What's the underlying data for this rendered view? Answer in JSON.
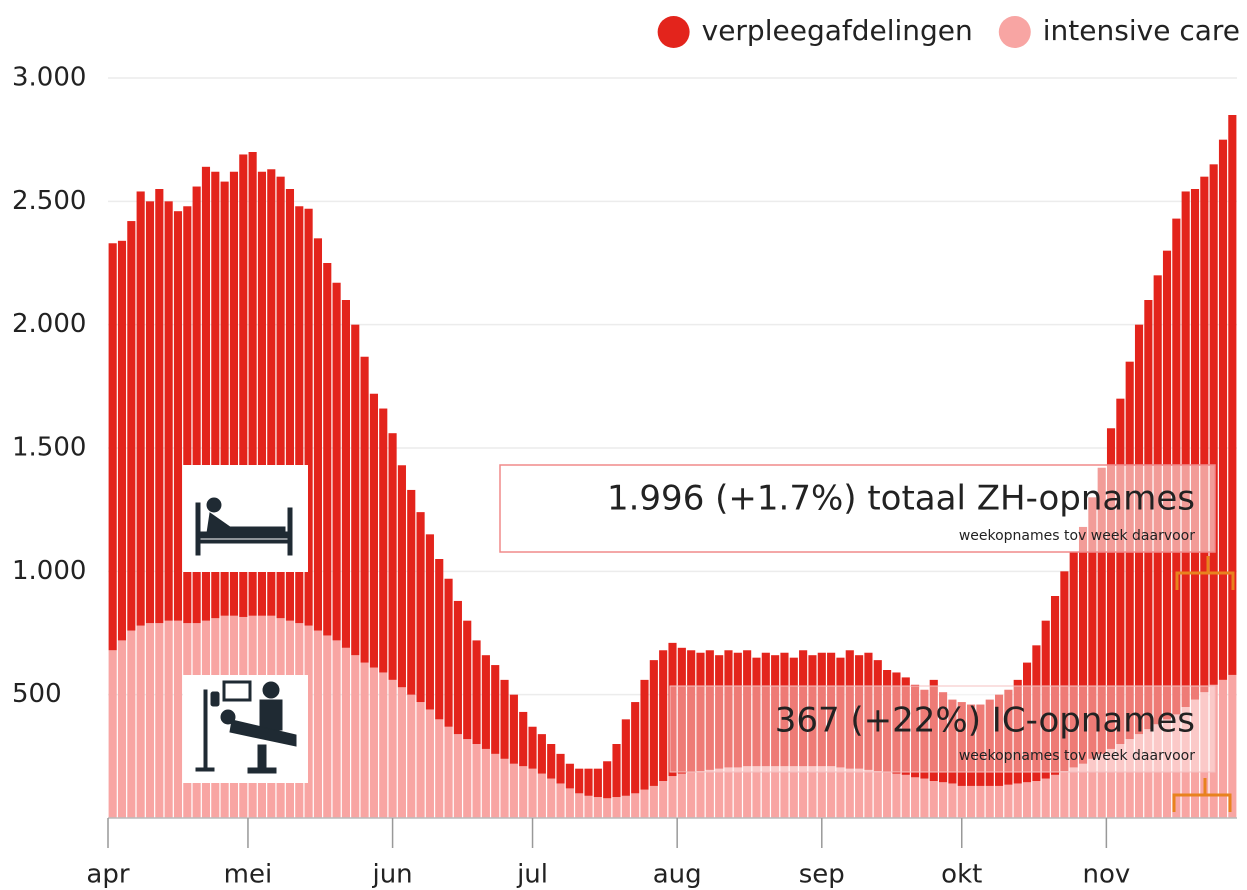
{
  "chart_data": {
    "type": "stacked_bar",
    "x": [
      0,
      2,
      4,
      6,
      8,
      10,
      12,
      14,
      16,
      18,
      20,
      22,
      24,
      26,
      28,
      30,
      32,
      34,
      36,
      38,
      40,
      42,
      44,
      46,
      48,
      50,
      52,
      54,
      56,
      58,
      60,
      62,
      64,
      66,
      68,
      70,
      72,
      74,
      76,
      78,
      80,
      82,
      84,
      86,
      88,
      90,
      92,
      94,
      96,
      98,
      100,
      102,
      104,
      106,
      108,
      110,
      112,
      114,
      116,
      118,
      120,
      122,
      124,
      126,
      128,
      130,
      132,
      134,
      136,
      138,
      140,
      142,
      144,
      146,
      148,
      150,
      152,
      154,
      156,
      158,
      160,
      162,
      164,
      166,
      168,
      170,
      172,
      174,
      176,
      178,
      180,
      182,
      184,
      186,
      188,
      190,
      192,
      194,
      196,
      198,
      200,
      202,
      204,
      206,
      208,
      210,
      212,
      214,
      216,
      218,
      220,
      222,
      224,
      226,
      228,
      230,
      232,
      234,
      236,
      238,
      240
    ],
    "xlim": [
      0,
      242
    ],
    "xticks": [
      {
        "value": 0,
        "label": "apr"
      },
      {
        "value": 30,
        "label": "mei"
      },
      {
        "value": 61,
        "label": "jun"
      },
      {
        "value": 91,
        "label": "jul"
      },
      {
        "value": 122,
        "label": "aug"
      },
      {
        "value": 153,
        "label": "sep"
      },
      {
        "value": 183,
        "label": "okt"
      },
      {
        "value": 214,
        "label": "nov"
      }
    ],
    "ylim": [
      0,
      3000
    ],
    "yticks": [
      500,
      {
        "value": 1000,
        "label": "1.000"
      },
      {
        "value": 1500,
        "label": "1.500"
      },
      {
        "value": 2000,
        "label": "2.000"
      },
      {
        "value": 2500,
        "label": "2.500"
      },
      {
        "value": 3000,
        "label": "3.000"
      }
    ],
    "grid": true,
    "legend": "top-right",
    "series": [
      {
        "name": "verpleegafdelingen",
        "color": "#e3241c",
        "values": [
          1650,
          1620,
          1660,
          1760,
          1710,
          1760,
          1700,
          1660,
          1690,
          1770,
          1840,
          1810,
          1760,
          1800,
          1875,
          1880,
          1800,
          1810,
          1790,
          1750,
          1690,
          1690,
          1590,
          1510,
          1450,
          1410,
          1340,
          1240,
          1110,
          1070,
          1000,
          900,
          830,
          770,
          710,
          650,
          600,
          540,
          480,
          420,
          380,
          360,
          320,
          280,
          220,
          170,
          160,
          140,
          120,
          100,
          100,
          110,
          115,
          150,
          215,
          310,
          370,
          445,
          510,
          530,
          540,
          510,
          495,
          480,
          485,
          460,
          475,
          465,
          470,
          440,
          460,
          450,
          460,
          440,
          470,
          450,
          460,
          460,
          445,
          480,
          460,
          475,
          450,
          415,
          410,
          395,
          375,
          360,
          410,
          365,
          340,
          340,
          330,
          330,
          350,
          370,
          385,
          420,
          485,
          550,
          640,
          725,
          810,
          875,
          960,
          1060,
          1160,
          1300,
          1400,
          1530,
          1660,
          1740,
          1820,
          1900,
          2010,
          2090,
          2070,
          2090,
          2110,
          2190,
          2270
        ]
      },
      {
        "name": "intensive care",
        "color": "#f8a5a3",
        "values": [
          680,
          720,
          760,
          780,
          790,
          790,
          800,
          800,
          790,
          790,
          800,
          810,
          820,
          820,
          815,
          820,
          820,
          820,
          810,
          800,
          790,
          780,
          760,
          740,
          720,
          690,
          660,
          630,
          610,
          590,
          560,
          530,
          500,
          470,
          440,
          400,
          370,
          340,
          320,
          300,
          280,
          260,
          240,
          220,
          210,
          200,
          180,
          160,
          140,
          120,
          100,
          90,
          85,
          80,
          85,
          90,
          100,
          115,
          130,
          150,
          170,
          180,
          185,
          190,
          195,
          200,
          205,
          205,
          210,
          210,
          210,
          210,
          210,
          210,
          210,
          210,
          210,
          210,
          205,
          200,
          200,
          195,
          190,
          185,
          180,
          175,
          165,
          160,
          150,
          145,
          140,
          130,
          130,
          130,
          130,
          130,
          135,
          140,
          145,
          150,
          160,
          175,
          190,
          205,
          220,
          240,
          260,
          280,
          300,
          320,
          340,
          360,
          380,
          400,
          420,
          450,
          480,
          510,
          540,
          560,
          580
        ]
      }
    ],
    "annotations": [
      {
        "text": "1.996 (+1.7%) totaal ZH-opnames",
        "note": "weekopnames tov week daarvoor"
      },
      {
        "text": "367 (+22%) IC-opnames",
        "note": "weekopnames tov week daarvoor"
      }
    ]
  }
}
